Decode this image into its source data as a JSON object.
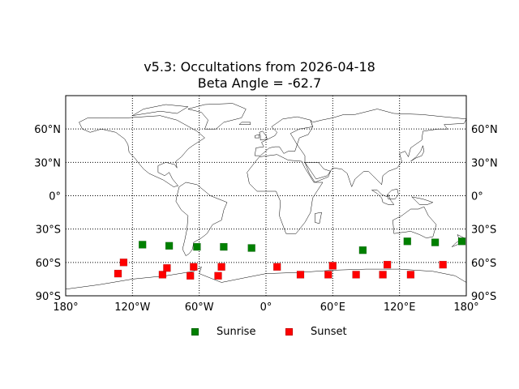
{
  "title": {
    "line1": "v5.3: Occultations from 2026-04-18",
    "line2": "Beta Angle = -62.7"
  },
  "colors": {
    "sunrise": "#008000",
    "sunset": "#ff0000",
    "coastline": "#000000",
    "grid": "#000000"
  },
  "chart_data": {
    "type": "scatter",
    "projection": "equirectangular",
    "xlim": [
      -180,
      180
    ],
    "ylim": [
      -90,
      90
    ],
    "grid": true,
    "legend_placement": "bottom-center",
    "x_ticks": [
      {
        "value": -180,
        "label": "180°"
      },
      {
        "value": -120,
        "label": "120°W"
      },
      {
        "value": -60,
        "label": "60°W"
      },
      {
        "value": 0,
        "label": "0°"
      },
      {
        "value": 60,
        "label": "60°E"
      },
      {
        "value": 120,
        "label": "120°E"
      },
      {
        "value": 180,
        "label": "180°"
      }
    ],
    "y_ticks": [
      {
        "value": 60,
        "label": "60°N"
      },
      {
        "value": 30,
        "label": "30°N"
      },
      {
        "value": 0,
        "label": "0°"
      },
      {
        "value": -30,
        "label": "30°S"
      },
      {
        "value": -60,
        "label": "60°S"
      },
      {
        "value": -90,
        "label": "90°S"
      }
    ],
    "series": [
      {
        "name": "Sunrise",
        "marker": "square",
        "color": "#008000",
        "points": [
          {
            "lon": -111,
            "lat": -44
          },
          {
            "lon": -87,
            "lat": -45
          },
          {
            "lon": -62,
            "lat": -46
          },
          {
            "lon": -38,
            "lat": -46
          },
          {
            "lon": -13,
            "lat": -47
          },
          {
            "lon": 87,
            "lat": -49
          },
          {
            "lon": 127,
            "lat": -41
          },
          {
            "lon": 152,
            "lat": -42
          },
          {
            "lon": 176,
            "lat": -41
          }
        ]
      },
      {
        "name": "Sunset",
        "marker": "square",
        "color": "#ff0000",
        "points": [
          {
            "lon": -133,
            "lat": -70
          },
          {
            "lon": -128,
            "lat": -60
          },
          {
            "lon": -93,
            "lat": -71
          },
          {
            "lon": -89,
            "lat": -65
          },
          {
            "lon": -68,
            "lat": -72
          },
          {
            "lon": -65,
            "lat": -64
          },
          {
            "lon": -43,
            "lat": -72
          },
          {
            "lon": -40,
            "lat": -64
          },
          {
            "lon": 10,
            "lat": -64
          },
          {
            "lon": 31,
            "lat": -71
          },
          {
            "lon": 56,
            "lat": -71
          },
          {
            "lon": 60,
            "lat": -63
          },
          {
            "lon": 81,
            "lat": -71
          },
          {
            "lon": 105,
            "lat": -71
          },
          {
            "lon": 109,
            "lat": -62
          },
          {
            "lon": 130,
            "lat": -71
          },
          {
            "lon": 159,
            "lat": -62
          }
        ]
      }
    ]
  },
  "legend": [
    {
      "label": "Sunrise",
      "color": "#008000"
    },
    {
      "label": "Sunset",
      "color": "#ff0000"
    }
  ]
}
